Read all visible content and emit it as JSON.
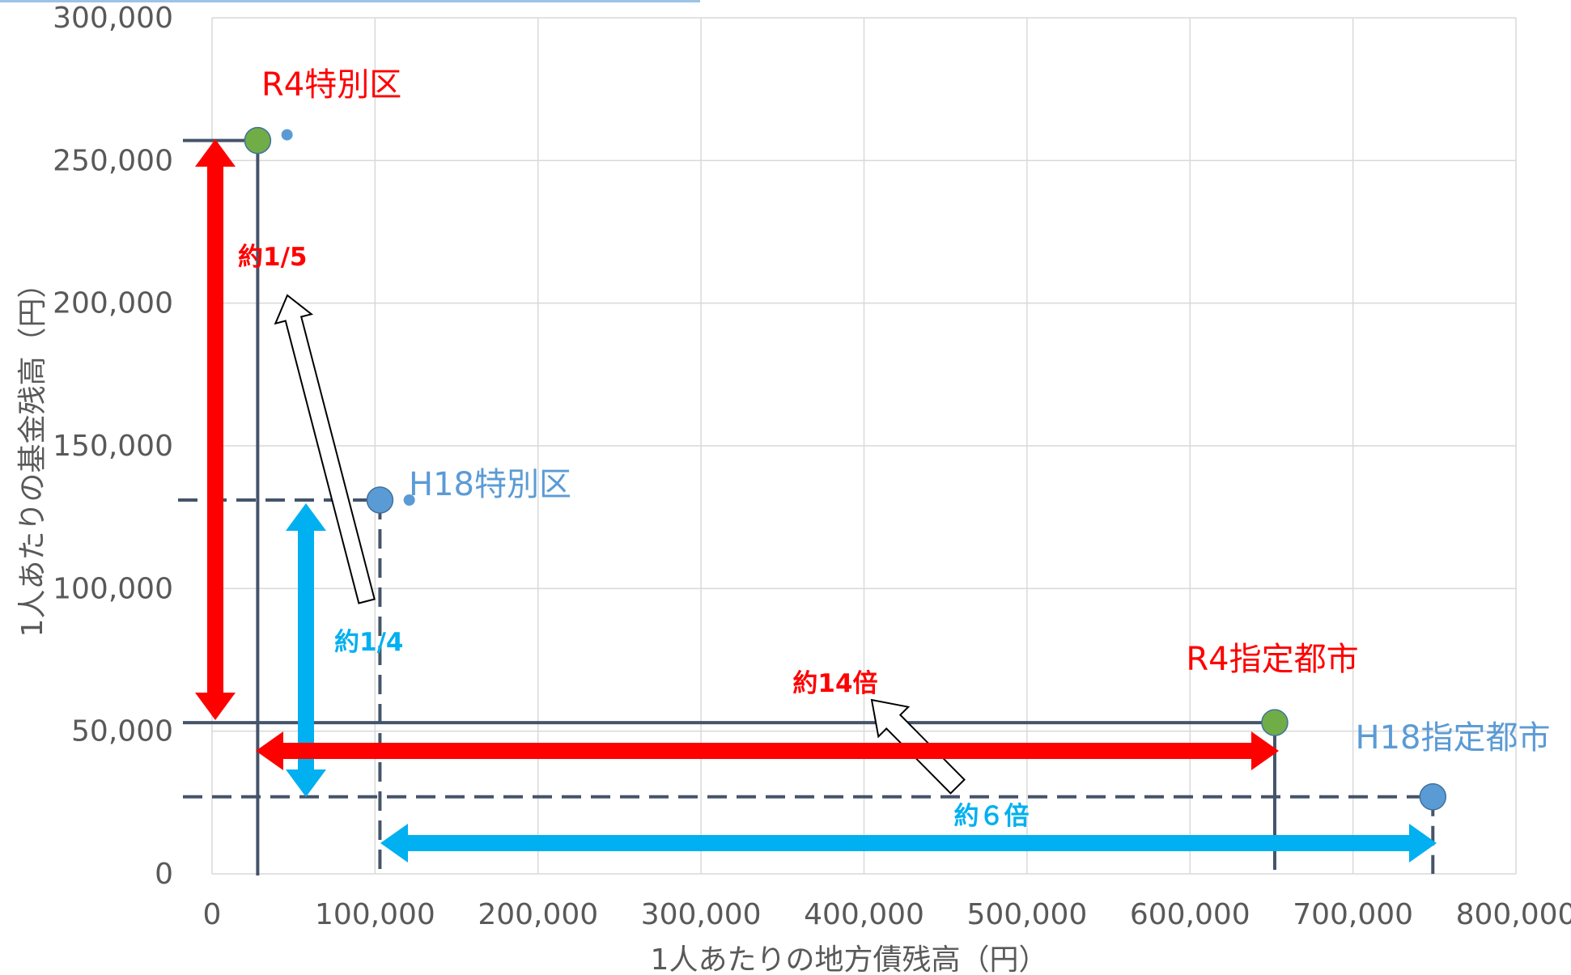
{
  "chart_data": {
    "type": "scatter",
    "xlabel": "1人あたりの地方債残高（円）",
    "ylabel": "1人あたりの基金残高（円）",
    "xlim": [
      0,
      800000
    ],
    "ylim": [
      0,
      300000
    ],
    "x_ticks": [
      "0",
      "100,000",
      "200,000",
      "300,000",
      "400,000",
      "500,000",
      "600,000",
      "700,000",
      "800,000"
    ],
    "y_ticks": [
      "0",
      "50,000",
      "100,000",
      "150,000",
      "200,000",
      "250,000",
      "300,000"
    ],
    "grid": true,
    "points": [
      {
        "label": "R4特別区",
        "x": 28000,
        "y": 257000,
        "color": "#70ad47",
        "label_color": "#ff0000"
      },
      {
        "label": "H18特別区",
        "x": 103000,
        "y": 131000,
        "color": "#5b9bd5",
        "label_color": "#5b9bd5"
      },
      {
        "label": "R4指定都市",
        "x": 652000,
        "y": 53000,
        "color": "#70ad47",
        "label_color": "#ff0000"
      },
      {
        "label": "H18指定都市",
        "x": 749000,
        "y": 27000,
        "color": "#5b9bd5",
        "label_color": "#5b9bd5"
      }
    ],
    "small_markers": [
      {
        "x": 46000,
        "y": 259000
      },
      {
        "x": 121000,
        "y": 131000
      }
    ],
    "annotations": [
      {
        "text": "約1/5",
        "color": "#ff0000"
      },
      {
        "text": "約1/4",
        "color": "#00b0f0"
      },
      {
        "text": "約14倍",
        "color": "#ff0000"
      },
      {
        "text": "約６倍",
        "color": "#00b0f0"
      }
    ],
    "colors": {
      "grid": "#d9d9d9",
      "guide": "#44546a",
      "red_arrow": "#ff0000",
      "blue_arrow": "#00b0f0",
      "trend_arrow_fill": "#ffffff",
      "trend_arrow_stroke": "#000000",
      "top_line": "#9dc3e6"
    }
  }
}
